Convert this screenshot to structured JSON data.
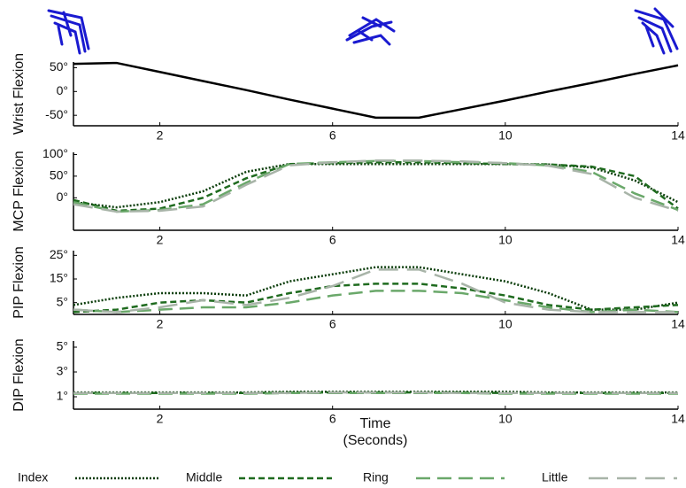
{
  "chart_data": [
    {
      "type": "line",
      "y_label": "Wrist Flexion",
      "xlim": [
        0,
        14
      ],
      "xticks": [
        2,
        6,
        10,
        14
      ],
      "ylim": [
        -72,
        62
      ],
      "yticks": [
        {
          "value": 50,
          "label": "50°"
        },
        {
          "value": 0,
          "label": "0°"
        },
        {
          "value": -50,
          "label": "-50°"
        }
      ],
      "x": [
        0,
        1,
        2,
        3,
        4,
        5,
        6,
        7,
        8,
        9,
        10,
        11,
        12,
        13,
        14
      ],
      "series": [
        {
          "color": "#000000",
          "dash": "solid",
          "values": [
            58,
            60,
            41,
            22,
            3,
            -17,
            -36,
            -55,
            -55,
            -37,
            -19,
            0,
            18,
            37,
            55
          ]
        }
      ]
    },
    {
      "type": "line",
      "y_label": "MCP Flexion",
      "xlim": [
        0,
        14
      ],
      "xticks": [
        2,
        6,
        10,
        14
      ],
      "ylim": [
        -75,
        105
      ],
      "yticks": [
        {
          "value": 100,
          "label": "100°"
        },
        {
          "value": 50,
          "label": "50°"
        },
        {
          "value": 0,
          "label": "0°"
        }
      ],
      "x": [
        0,
        1,
        2,
        3,
        4,
        5,
        6,
        7,
        8,
        9,
        10,
        11,
        12,
        13,
        14
      ],
      "series": [
        {
          "color": "#0b3d0b",
          "dash": "dotted",
          "values": [
            -10,
            -22,
            -10,
            15,
            60,
            78,
            78,
            78,
            78,
            78,
            78,
            77,
            70,
            40,
            -10
          ]
        },
        {
          "color": "#1f6b1f",
          "dash": "dashed",
          "values": [
            -5,
            -30,
            -25,
            0,
            45,
            78,
            80,
            82,
            82,
            80,
            78,
            77,
            72,
            50,
            -25
          ]
        },
        {
          "color": "#6aa86a",
          "dash": "long",
          "values": [
            -10,
            -32,
            -28,
            -15,
            35,
            78,
            82,
            85,
            85,
            82,
            80,
            75,
            60,
            10,
            -28
          ]
        },
        {
          "color": "#a8b4a8",
          "dash": "longer",
          "values": [
            -15,
            -32,
            -30,
            -20,
            30,
            75,
            82,
            86,
            86,
            84,
            80,
            74,
            55,
            0,
            -30
          ]
        }
      ]
    },
    {
      "type": "line",
      "y_label": "PIP Flexion",
      "xlim": [
        0,
        14
      ],
      "xticks": [
        2,
        6,
        10,
        14
      ],
      "ylim": [
        0,
        27
      ],
      "yticks": [
        {
          "value": 25,
          "label": "25°"
        },
        {
          "value": 15,
          "label": "15°"
        },
        {
          "value": 5,
          "label": "5°"
        }
      ],
      "x": [
        0,
        1,
        2,
        3,
        4,
        5,
        6,
        7,
        8,
        9,
        10,
        11,
        12,
        13,
        14
      ],
      "series": [
        {
          "color": "#0b3d0b",
          "dash": "dotted",
          "values": [
            4,
            7,
            9,
            9,
            8,
            14,
            17,
            20,
            20,
            17,
            14,
            9,
            2,
            2,
            5
          ]
        },
        {
          "color": "#1f6b1f",
          "dash": "dashed",
          "values": [
            1,
            2,
            5,
            6,
            5,
            9,
            12,
            13,
            13,
            11,
            8,
            4,
            2,
            3,
            4
          ]
        },
        {
          "color": "#6aa86a",
          "dash": "long",
          "values": [
            2,
            1,
            2,
            3,
            3,
            5,
            8,
            10,
            10,
            9,
            6,
            3,
            1,
            2,
            1
          ]
        },
        {
          "color": "#a8b4a8",
          "dash": "longer",
          "values": [
            2,
            1,
            3,
            6,
            4,
            7,
            12,
            19,
            19,
            13,
            5,
            2,
            1,
            1,
            1
          ]
        }
      ]
    },
    {
      "type": "line",
      "y_label": "DIP Flexion",
      "xlim": [
        0,
        14
      ],
      "xticks": [
        2,
        6,
        10,
        14
      ],
      "ylim": [
        0,
        5.5
      ],
      "yticks": [
        {
          "value": 5,
          "label": "5°"
        },
        {
          "value": 3,
          "label": "3°"
        },
        {
          "value": 1,
          "label": "1°"
        }
      ],
      "x": [
        0,
        1,
        2,
        3,
        4,
        5,
        6,
        7,
        8,
        9,
        10,
        11,
        12,
        13,
        14
      ],
      "series": [
        {
          "color": "#0b3d0b",
          "dash": "dotted",
          "values": [
            1.35,
            1.35,
            1.35,
            1.35,
            1.35,
            1.4,
            1.4,
            1.4,
            1.4,
            1.4,
            1.4,
            1.35,
            1.35,
            1.35,
            1.35
          ]
        },
        {
          "color": "#1f6b1f",
          "dash": "dashed",
          "values": [
            1.3,
            1.3,
            1.3,
            1.3,
            1.3,
            1.35,
            1.35,
            1.35,
            1.35,
            1.35,
            1.3,
            1.3,
            1.3,
            1.3,
            1.3
          ]
        },
        {
          "color": "#6aa86a",
          "dash": "long",
          "values": [
            1.25,
            1.25,
            1.25,
            1.25,
            1.25,
            1.3,
            1.3,
            1.3,
            1.3,
            1.3,
            1.25,
            1.25,
            1.25,
            1.25,
            1.25
          ]
        },
        {
          "color": "#a8b4a8",
          "dash": "longer",
          "values": [
            1.3,
            1.3,
            1.3,
            1.3,
            1.3,
            1.3,
            1.35,
            1.35,
            1.35,
            1.3,
            1.3,
            1.3,
            1.3,
            1.3,
            1.3
          ]
        }
      ]
    }
  ],
  "x_label": [
    "Time",
    "(Seconds)"
  ],
  "legend": [
    {
      "name": "Index",
      "color": "#0b3d0b",
      "dash": "dotted"
    },
    {
      "name": "Middle",
      "color": "#1f6b1f",
      "dash": "dashed"
    },
    {
      "name": "Ring",
      "color": "#6aa86a",
      "dash": "long"
    },
    {
      "name": "Little",
      "color": "#a8b4a8",
      "dash": "longer"
    }
  ]
}
